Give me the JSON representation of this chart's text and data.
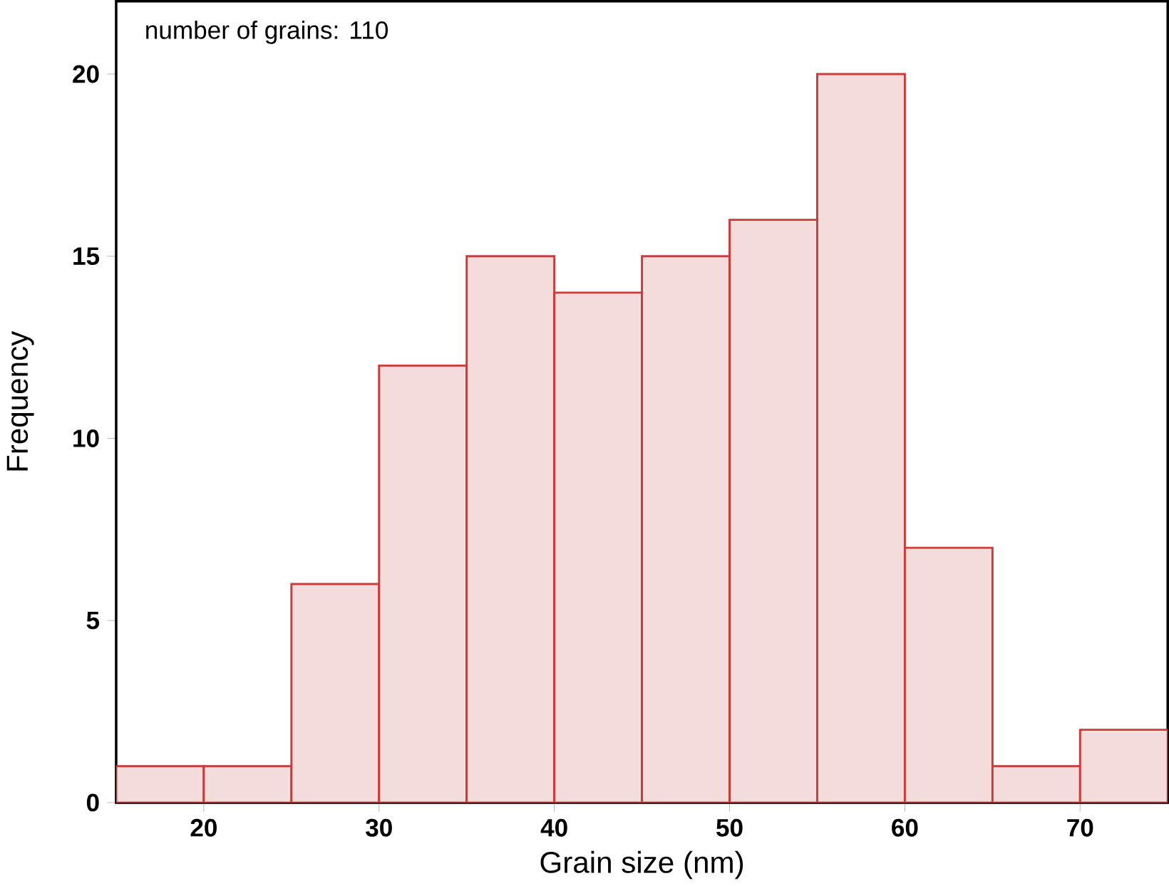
{
  "chart_data": {
    "type": "histogram",
    "xlabel": "Grain size (nm)",
    "ylabel": "Frequency",
    "bins": [
      15,
      20,
      25,
      30,
      35,
      40,
      45,
      50,
      55,
      60,
      65,
      70,
      75
    ],
    "values": [
      1,
      1,
      6,
      12,
      15,
      14,
      15,
      16,
      20,
      7,
      1,
      2
    ],
    "color": "#c83c3c",
    "xlim": [
      15,
      75
    ],
    "ylim": [
      0,
      22
    ],
    "xticks": [
      20,
      30,
      40,
      50,
      60,
      70
    ],
    "yticks": [
      0,
      5,
      10,
      15,
      20
    ],
    "annotations": [
      "number of grains: 110"
    ],
    "grid": false
  }
}
